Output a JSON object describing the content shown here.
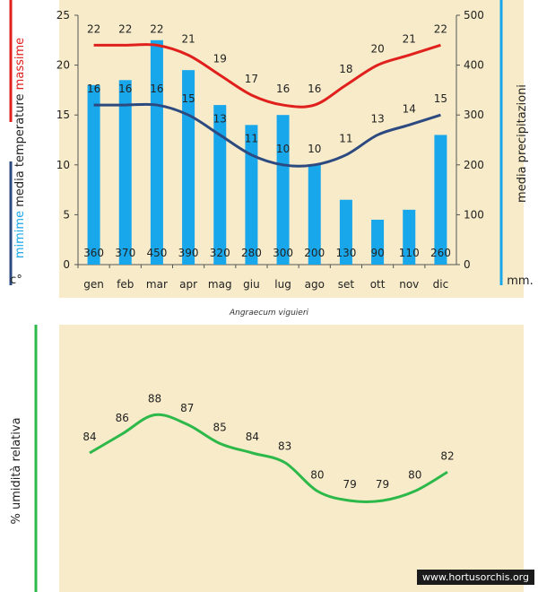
{
  "caption": "Angraecum viguieri",
  "watermark": "www.hortusorchis.org",
  "colors": {
    "max_temp": "#e0201c",
    "min_temp": "#2c4a80",
    "precip": "#19a7ec",
    "humidity": "#2db84a",
    "paper": "#f7ebc9"
  },
  "chart_data": [
    {
      "type": "bar+line",
      "categories": [
        "gen",
        "feb",
        "mar",
        "apr",
        "mag",
        "giu",
        "lug",
        "ago",
        "set",
        "ott",
        "nov",
        "dic"
      ],
      "left_axis": {
        "label_parts": [
          "massime",
          "temperature",
          "media",
          "mimime"
        ],
        "unit": "c°",
        "ticks": [
          "0",
          "5",
          "10",
          "15",
          "20",
          "25"
        ],
        "ylim": [
          0,
          25
        ]
      },
      "right_axis": {
        "label": "media  precipitazioni",
        "unit": "mm.",
        "ticks": [
          "0",
          "100",
          "200",
          "300",
          "400",
          "500"
        ],
        "ylim": [
          0,
          500
        ]
      },
      "series": [
        {
          "kind": "line",
          "axis": "left",
          "values": [
            22,
            22,
            22,
            21,
            19,
            17,
            16,
            16,
            18,
            20,
            21,
            22
          ]
        },
        {
          "kind": "line",
          "axis": "left",
          "values": [
            16,
            16,
            16,
            15,
            13,
            11,
            10,
            10,
            11,
            13,
            14,
            15
          ]
        },
        {
          "kind": "bar",
          "axis": "right",
          "values": [
            360,
            370,
            450,
            390,
            320,
            280,
            300,
            200,
            130,
            90,
            110,
            260
          ]
        }
      ]
    },
    {
      "type": "line",
      "ylabel": "% umidità relativa",
      "ylim": [
        76,
        92
      ],
      "series": [
        {
          "values": [
            84,
            86,
            88,
            87,
            85,
            84,
            83,
            80,
            79,
            79,
            80,
            82
          ]
        }
      ]
    }
  ]
}
